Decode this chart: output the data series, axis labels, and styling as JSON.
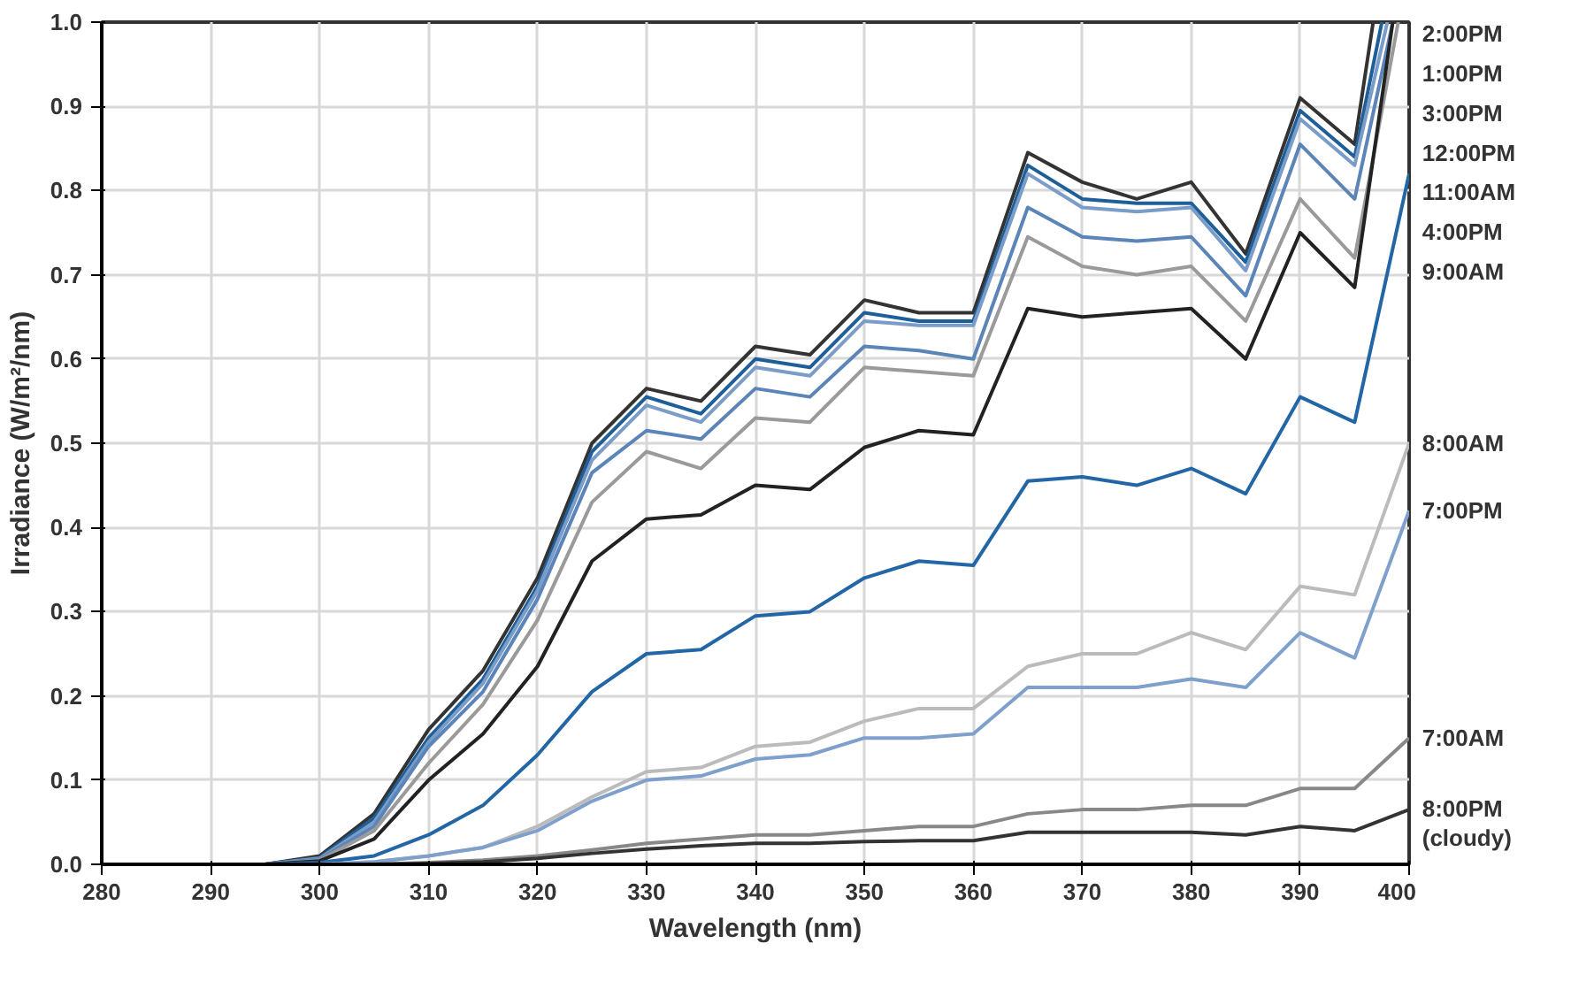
{
  "chart_data": {
    "type": "line",
    "xlabel": "Wavelength (nm)",
    "ylabel": "Irradiance (W/m²/nm)",
    "xlim": [
      280,
      400
    ],
    "ylim": [
      0,
      1.0
    ],
    "xticks": [
      280,
      290,
      300,
      310,
      320,
      330,
      340,
      350,
      360,
      370,
      380,
      390,
      400
    ],
    "yticks": [
      {
        "value": 0,
        "label": "0.0"
      },
      0.1,
      0.2,
      0.3,
      0.4,
      0.5,
      0.6,
      0.7,
      0.8,
      0.9,
      {
        "value": 1.0,
        "label": "1.0"
      }
    ],
    "grid": true,
    "legend": false,
    "marker": "none",
    "line_style": "solid",
    "series": [
      {
        "name": "2:00PM",
        "color": "#333333",
        "x": [
          295,
          300,
          305,
          310,
          315,
          320,
          325,
          330,
          335,
          340,
          345,
          350,
          355,
          360,
          365,
          370,
          375,
          380,
          385,
          390,
          395,
          396.7
        ],
        "values": [
          0,
          0.01,
          0.06,
          0.16,
          0.23,
          0.34,
          0.5,
          0.565,
          0.55,
          0.615,
          0.605,
          0.67,
          0.655,
          0.655,
          0.845,
          0.81,
          0.79,
          0.81,
          0.725,
          0.91,
          0.855,
          1.0
        ]
      },
      {
        "name": "1:00PM",
        "color": "#1f5f99",
        "x": [
          295,
          300,
          305,
          310,
          315,
          320,
          325,
          330,
          335,
          340,
          345,
          350,
          355,
          360,
          365,
          370,
          375,
          380,
          385,
          390,
          395,
          397.5
        ],
        "values": [
          0,
          0.008,
          0.055,
          0.15,
          0.22,
          0.33,
          0.49,
          0.555,
          0.535,
          0.6,
          0.59,
          0.655,
          0.645,
          0.645,
          0.83,
          0.79,
          0.785,
          0.785,
          0.715,
          0.895,
          0.84,
          1.0
        ]
      },
      {
        "name": "3:00PM",
        "color": "#7a9cc8",
        "x": [
          295,
          300,
          305,
          310,
          315,
          320,
          325,
          330,
          335,
          340,
          345,
          350,
          355,
          360,
          365,
          370,
          375,
          380,
          385,
          390,
          395,
          398
        ],
        "values": [
          0,
          0.007,
          0.05,
          0.145,
          0.215,
          0.325,
          0.48,
          0.545,
          0.525,
          0.59,
          0.58,
          0.645,
          0.64,
          0.64,
          0.82,
          0.78,
          0.775,
          0.78,
          0.705,
          0.885,
          0.83,
          1.0
        ]
      },
      {
        "name": "12:00PM",
        "color": "#5b84b8",
        "x": [
          295,
          300,
          305,
          310,
          315,
          320,
          325,
          330,
          335,
          340,
          345,
          350,
          355,
          360,
          365,
          370,
          375,
          380,
          385,
          390,
          395,
          398.5
        ],
        "values": [
          0,
          0.006,
          0.045,
          0.14,
          0.205,
          0.315,
          0.465,
          0.515,
          0.505,
          0.565,
          0.555,
          0.615,
          0.61,
          0.6,
          0.78,
          0.745,
          0.74,
          0.745,
          0.675,
          0.855,
          0.79,
          1.0
        ]
      },
      {
        "name": "11:00AM",
        "color": "#9a9a9a",
        "x": [
          295,
          300,
          305,
          310,
          315,
          320,
          325,
          330,
          335,
          340,
          345,
          350,
          355,
          360,
          365,
          370,
          375,
          380,
          385,
          390,
          395,
          399
        ],
        "values": [
          0,
          0.005,
          0.04,
          0.12,
          0.19,
          0.29,
          0.43,
          0.49,
          0.47,
          0.53,
          0.525,
          0.59,
          0.585,
          0.58,
          0.745,
          0.71,
          0.7,
          0.71,
          0.645,
          0.79,
          0.72,
          1.0
        ]
      },
      {
        "name": "4:00PM",
        "color": "#222222",
        "x": [
          295,
          300,
          305,
          310,
          315,
          320,
          325,
          330,
          335,
          340,
          345,
          350,
          355,
          360,
          365,
          370,
          375,
          380,
          385,
          390,
          395,
          398.5
        ],
        "values": [
          0,
          0.004,
          0.03,
          0.1,
          0.155,
          0.235,
          0.36,
          0.41,
          0.415,
          0.45,
          0.445,
          0.495,
          0.515,
          0.51,
          0.66,
          0.65,
          0.655,
          0.66,
          0.6,
          0.75,
          0.685,
          1.0
        ]
      },
      {
        "name": "9:00AM",
        "color": "#2266a6",
        "x": [
          295,
          300,
          305,
          310,
          315,
          320,
          325,
          330,
          335,
          340,
          345,
          350,
          355,
          360,
          365,
          370,
          375,
          380,
          385,
          390,
          395,
          400
        ],
        "values": [
          0,
          0.002,
          0.01,
          0.035,
          0.07,
          0.13,
          0.205,
          0.25,
          0.255,
          0.295,
          0.3,
          0.34,
          0.36,
          0.355,
          0.455,
          0.46,
          0.45,
          0.47,
          0.44,
          0.555,
          0.525,
          0.82
        ]
      },
      {
        "name": "8:00AM",
        "color": "#bbbbbb",
        "x": [
          295,
          300,
          305,
          310,
          315,
          320,
          325,
          330,
          335,
          340,
          345,
          350,
          355,
          360,
          365,
          370,
          375,
          380,
          385,
          390,
          395,
          400
        ],
        "values": [
          0,
          0,
          0.003,
          0.01,
          0.02,
          0.045,
          0.08,
          0.11,
          0.115,
          0.14,
          0.145,
          0.17,
          0.185,
          0.185,
          0.235,
          0.25,
          0.25,
          0.275,
          0.255,
          0.33,
          0.32,
          0.5
        ]
      },
      {
        "name": "7:00PM",
        "color": "#7f9fcc",
        "x": [
          295,
          300,
          305,
          310,
          315,
          320,
          325,
          330,
          335,
          340,
          345,
          350,
          355,
          360,
          365,
          370,
          375,
          380,
          385,
          390,
          395,
          400
        ],
        "values": [
          0,
          0,
          0.003,
          0.01,
          0.02,
          0.04,
          0.075,
          0.1,
          0.105,
          0.125,
          0.13,
          0.15,
          0.15,
          0.155,
          0.21,
          0.21,
          0.21,
          0.22,
          0.21,
          0.275,
          0.245,
          0.42
        ]
      },
      {
        "name": "7:00AM",
        "color": "#888888",
        "x": [
          295,
          300,
          305,
          310,
          315,
          320,
          325,
          330,
          335,
          340,
          345,
          350,
          355,
          360,
          365,
          370,
          375,
          380,
          385,
          390,
          395,
          400
        ],
        "values": [
          0,
          0,
          0,
          0.002,
          0.005,
          0.01,
          0.017,
          0.025,
          0.03,
          0.035,
          0.035,
          0.04,
          0.045,
          0.045,
          0.06,
          0.065,
          0.065,
          0.07,
          0.07,
          0.09,
          0.09,
          0.15
        ]
      },
      {
        "name": "8:00PM\n(cloudy)",
        "color": "#333333",
        "x": [
          280,
          285,
          290,
          295,
          300,
          305,
          310,
          315,
          320,
          325,
          330,
          335,
          340,
          345,
          350,
          355,
          360,
          365,
          370,
          375,
          380,
          385,
          390,
          395,
          400
        ],
        "values": [
          0,
          0,
          0,
          0,
          0,
          0,
          0.001,
          0.003,
          0.007,
          0.013,
          0.018,
          0.022,
          0.025,
          0.025,
          0.027,
          0.028,
          0.028,
          0.038,
          0.038,
          0.038,
          0.038,
          0.035,
          0.045,
          0.04,
          0.065
        ]
      }
    ]
  }
}
